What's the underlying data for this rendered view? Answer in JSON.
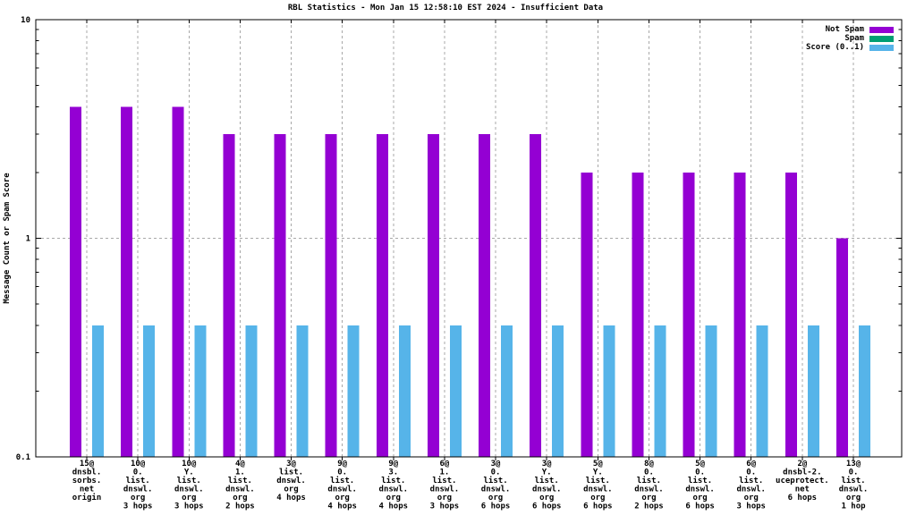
{
  "chart_data": {
    "type": "bar",
    "title": "RBL Statistics - Mon Jan 15 12:58:10 EST 2024 - Insufficient Data",
    "ylabel": "Message Count or Spam Score",
    "xlabel": "",
    "scale": "log",
    "ylim": [
      0.1,
      10
    ],
    "yticks": [
      10,
      1,
      0.1
    ],
    "grid": true,
    "legend_position": "top-right",
    "categories": [
      [
        "15@",
        "dnsbl.",
        "sorbs.",
        "net",
        "origin"
      ],
      [
        "10@",
        "0.",
        "list.",
        "dnswl.",
        "org",
        "3 hops"
      ],
      [
        "10@",
        "Y.",
        "list.",
        "dnswl.",
        "org",
        "3 hops"
      ],
      [
        "4@",
        "1.",
        "list.",
        "dnswl.",
        "org",
        "2 hops"
      ],
      [
        "3@",
        "list.",
        "dnswl.",
        "org",
        "4 hops"
      ],
      [
        "9@",
        "0.",
        "list.",
        "dnswl.",
        "org",
        "4 hops"
      ],
      [
        "9@",
        "3.",
        "list.",
        "dnswl.",
        "org",
        "4 hops"
      ],
      [
        "6@",
        "1.",
        "list.",
        "dnswl.",
        "org",
        "3 hops"
      ],
      [
        "3@",
        "0.",
        "list.",
        "dnswl.",
        "org",
        "6 hops"
      ],
      [
        "3@",
        "Y.",
        "list.",
        "dnswl.",
        "org",
        "6 hops"
      ],
      [
        "5@",
        "Y.",
        "list.",
        "dnswl.",
        "org",
        "6 hops"
      ],
      [
        "8@",
        "0.",
        "list.",
        "dnswl.",
        "org",
        "2 hops"
      ],
      [
        "5@",
        "0.",
        "list.",
        "dnswl.",
        "org",
        "6 hops"
      ],
      [
        "6@",
        "0.",
        "list.",
        "dnswl.",
        "org",
        "3 hops"
      ],
      [
        "2@",
        "dnsbl-2.",
        "uceprotect.",
        "net",
        "6 hops"
      ],
      [
        "13@",
        "0.",
        "list.",
        "dnswl.",
        "org",
        "1 hop"
      ]
    ],
    "series": [
      {
        "name": "Not Spam",
        "color": "#9400d3",
        "values": [
          4,
          4,
          4,
          3,
          3,
          3,
          3,
          3,
          3,
          3,
          2,
          2,
          2,
          2,
          2,
          1
        ]
      },
      {
        "name": "Spam",
        "color": "#009e73",
        "values": [
          0,
          0,
          0,
          0,
          0,
          0,
          0,
          0,
          0,
          0,
          0,
          0,
          0,
          0,
          0,
          0
        ]
      },
      {
        "name": "Score (0..1)",
        "color": "#56b4e9",
        "values": [
          0.4,
          0.4,
          0.4,
          0.4,
          0.4,
          0.4,
          0.4,
          0.4,
          0.4,
          0.4,
          0.4,
          0.4,
          0.4,
          0.4,
          0.4,
          0.4
        ]
      }
    ]
  }
}
